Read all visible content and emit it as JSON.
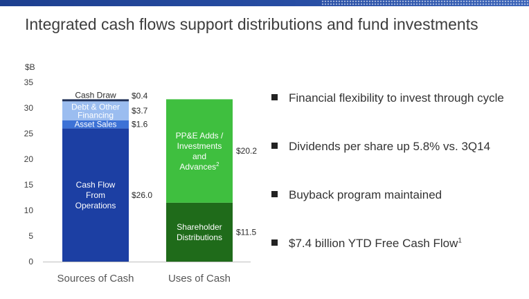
{
  "header": {
    "title": "Integrated cash flows support distributions and fund investments"
  },
  "colors": {
    "top_bar": "#2a4fa5",
    "operations": "#1c3fa3",
    "asset_sales": "#3d72d6",
    "debt_other": "#9bbdf0",
    "cash_draw": "#1c2d55",
    "ppe_adds": "#3fbf3f",
    "shareholder": "#1f6b1a"
  },
  "chart_data": {
    "type": "bar",
    "stacked": true,
    "unit_label": "$B",
    "ylim": [
      0,
      35
    ],
    "yticks": [
      0,
      5,
      10,
      15,
      20,
      25,
      30,
      35
    ],
    "grid": false,
    "legend": "none",
    "categories": [
      "Sources of Cash",
      "Uses of Cash"
    ],
    "stacks": [
      {
        "category": "Sources of Cash",
        "segments": [
          {
            "name": "Cash Flow From Operations",
            "value": 26.0,
            "value_label": "$26.0",
            "label_lines": [
              "Cash Flow",
              "From",
              "Operations"
            ],
            "color": "#1c3fa3"
          },
          {
            "name": "Asset Sales",
            "value": 1.6,
            "value_label": "$1.6",
            "label_lines": [
              "Asset Sales"
            ],
            "color": "#3d72d6"
          },
          {
            "name": "Debt & Other Financing",
            "value": 3.7,
            "value_label": "$3.7",
            "label_lines": [
              "Debt & Other",
              "Financing"
            ],
            "color": "#9bbdf0"
          },
          {
            "name": "Cash Draw",
            "value": 0.4,
            "value_label": "$0.4",
            "label_lines": [
              "Cash Draw"
            ],
            "color": "#1c2d55"
          }
        ]
      },
      {
        "category": "Uses of Cash",
        "segments": [
          {
            "name": "Shareholder Distributions",
            "value": 11.5,
            "value_label": "$11.5",
            "label_lines": [
              "Shareholder",
              "Distributions"
            ],
            "color": "#1f6b1a"
          },
          {
            "name": "PP&E Adds / Investments and Advances",
            "value": 20.2,
            "value_label": "$20.2",
            "label_lines": [
              "PP&E Adds /",
              "Investments",
              "and",
              "Advances"
            ],
            "footnote": "2",
            "color": "#3fbf3f"
          }
        ]
      }
    ]
  },
  "bullets": [
    {
      "text": "Financial flexibility to invest through cycle",
      "sup": ""
    },
    {
      "text": "Dividends per share up 5.8% vs. 3Q14",
      "sup": ""
    },
    {
      "text": "Buyback program maintained",
      "sup": ""
    },
    {
      "text": "$7.4 billion YTD Free Cash Flow",
      "sup": "1"
    }
  ]
}
